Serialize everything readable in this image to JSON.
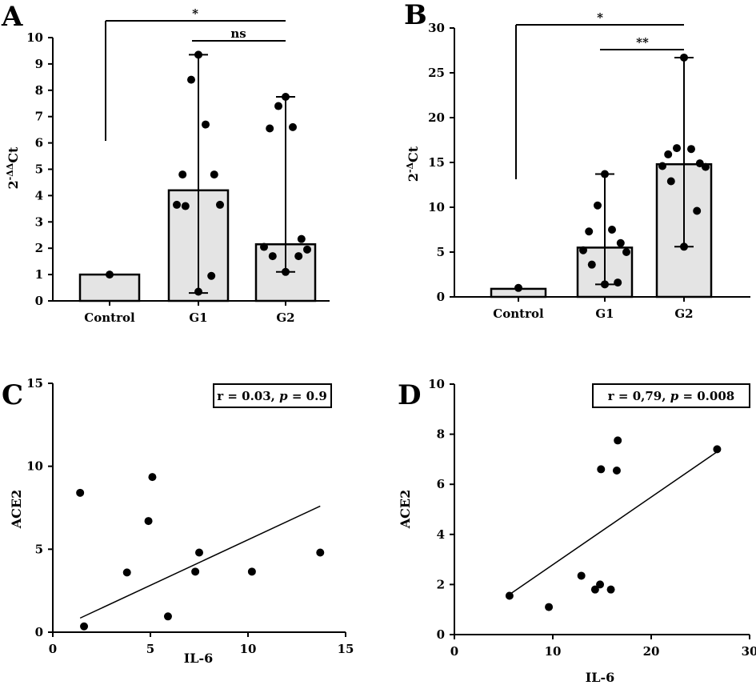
{
  "chart_data": [
    {
      "panel": "A",
      "type": "bar",
      "categories": [
        "Control",
        "G1",
        "G2"
      ],
      "values": [
        1.0,
        4.2,
        2.15
      ],
      "ylabel": "2^-ΔΔCt",
      "ylabel_base": "2",
      "ylabel_sup": "-ΔΔ",
      "ylabel_rest": "Ct",
      "ylim": [
        0,
        10
      ],
      "yticks": [
        0,
        1,
        2,
        3,
        4,
        5,
        6,
        7,
        8,
        9,
        10
      ],
      "error_bars": [
        {
          "low": 1.0,
          "high": 1.0
        },
        {
          "low": 0.3,
          "high": 9.35
        },
        {
          "low": 1.1,
          "high": 7.75
        }
      ],
      "points": [
        [
          1.0
        ],
        [
          9.35,
          8.4,
          6.7,
          4.8,
          4.8,
          3.65,
          3.65,
          3.6,
          0.95,
          0.35
        ],
        [
          7.75,
          7.4,
          6.6,
          6.55,
          2.35,
          2.05,
          1.95,
          1.7,
          1.7,
          1.1
        ]
      ],
      "significance": [
        {
          "from": 0,
          "to": 2,
          "label": "*"
        },
        {
          "from": 1,
          "to": 2,
          "label": "ns"
        }
      ]
    },
    {
      "panel": "B",
      "type": "bar",
      "categories": [
        "Control",
        "G1",
        "G2"
      ],
      "values": [
        0.9,
        5.5,
        14.8
      ],
      "ylabel": "2^-ΔCt",
      "ylabel_base": "2",
      "ylabel_sup": "-Δ",
      "ylabel_rest": "Ct",
      "ylim": [
        0,
        30
      ],
      "yticks": [
        0,
        5,
        10,
        15,
        20,
        25,
        30
      ],
      "error_bars": [
        {
          "low": 0.9,
          "high": 0.9
        },
        {
          "low": 1.4,
          "high": 13.7
        },
        {
          "low": 5.6,
          "high": 26.7
        }
      ],
      "points": [
        [
          1.0
        ],
        [
          13.7,
          10.2,
          7.5,
          7.3,
          6.0,
          5.2,
          5.0,
          3.6,
          1.6,
          1.4
        ],
        [
          26.7,
          16.6,
          16.5,
          15.9,
          14.9,
          14.6,
          14.5,
          12.9,
          9.6,
          5.6
        ]
      ],
      "significance": [
        {
          "from": 0,
          "to": 2,
          "label": "*"
        },
        {
          "from": 1,
          "to": 2,
          "label": "**"
        }
      ]
    },
    {
      "panel": "C",
      "type": "scatter",
      "xlabel": "IL-6",
      "ylabel": "ACE2",
      "xlim": [
        0,
        15
      ],
      "ylim": [
        0,
        15
      ],
      "xticks": [
        0,
        5,
        10,
        15
      ],
      "yticks": [
        0,
        5,
        10,
        15
      ],
      "x": [
        1.4,
        1.6,
        3.8,
        4.9,
        5.1,
        5.9,
        7.3,
        7.5,
        10.2,
        13.7
      ],
      "y": [
        8.4,
        0.35,
        3.6,
        6.7,
        9.35,
        0.95,
        3.65,
        4.8,
        3.65,
        4.8
      ],
      "fit_line": {
        "x": [
          1.4,
          13.7
        ],
        "y": [
          0.85,
          7.6
        ]
      },
      "annotation_r": "r = 0.03,",
      "annotation_p_letter": "p",
      "annotation_p_value": "= 0.9"
    },
    {
      "panel": "D",
      "type": "scatter",
      "xlabel": "IL-6",
      "ylabel": "ACE2",
      "xlim": [
        0,
        30
      ],
      "ylim": [
        0,
        10
      ],
      "xticks": [
        0,
        10,
        20,
        30
      ],
      "yticks": [
        0,
        2,
        4,
        6,
        8,
        10
      ],
      "x": [
        5.6,
        9.6,
        12.9,
        14.3,
        14.8,
        14.9,
        15.9,
        16.5,
        16.6,
        26.7
      ],
      "y": [
        1.55,
        1.1,
        2.35,
        1.8,
        2.0,
        6.6,
        1.8,
        6.55,
        7.75,
        7.4
      ],
      "fit_line": {
        "x": [
          5.6,
          26.7
        ],
        "y": [
          1.6,
          7.3
        ]
      },
      "annotation_r": "r = 0,79,",
      "annotation_p_letter": "p",
      "annotation_p_value": "= 0.008"
    }
  ]
}
